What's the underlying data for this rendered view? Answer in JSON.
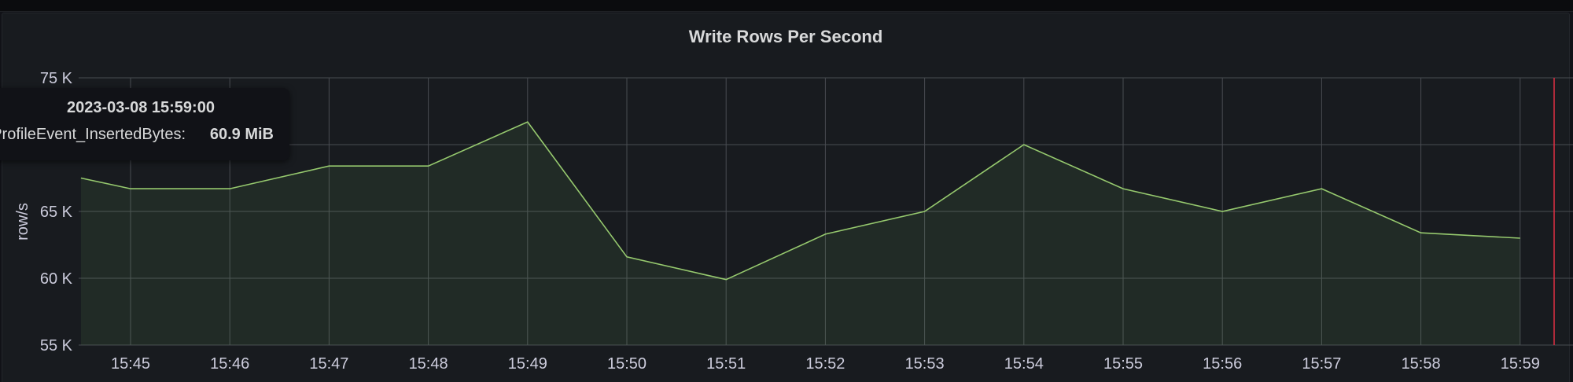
{
  "panel": {
    "title": "Write Rows Per Second"
  },
  "tooltip": {
    "time": "2023-03-08 15:59:00",
    "series_name": "ProfileEvent_InsertedBytes:",
    "value": "60.9 MiB"
  },
  "colors": {
    "line": "#96c96e",
    "fill": "rgba(115,191,105,0.10)",
    "grid": "#494c52",
    "cursor": "#e02f44"
  },
  "chart_data": {
    "type": "area",
    "title": "Write Rows Per Second",
    "ylabel": "row/s",
    "xlabel": "",
    "ylim": [
      55000,
      75000
    ],
    "y_ticks": [
      55000,
      60000,
      65000,
      70000,
      75000
    ],
    "y_tick_labels": [
      "55 K",
      "60 K",
      "65 K",
      "",
      "75 K"
    ],
    "x": [
      "15:44.5",
      "15:45",
      "15:46",
      "15:47",
      "15:48",
      "15:49",
      "15:50",
      "15:51",
      "15:52",
      "15:53",
      "15:54",
      "15:55",
      "15:56",
      "15:57",
      "15:58",
      "15:59"
    ],
    "x_tick_labels": [
      "15:45",
      "15:46",
      "15:47",
      "15:48",
      "15:49",
      "15:50",
      "15:51",
      "15:52",
      "15:53",
      "15:54",
      "15:55",
      "15:56",
      "15:57",
      "15:58",
      "15:59"
    ],
    "x_minutes": [
      44.5,
      45,
      46,
      47,
      48,
      49,
      50,
      51,
      52,
      53,
      54,
      55,
      56,
      57,
      58,
      59
    ],
    "values": [
      67500,
      66700,
      66700,
      68400,
      68400,
      71700,
      61600,
      59900,
      63300,
      65000,
      70000,
      66700,
      65000,
      66700,
      63400,
      63000
    ],
    "grid": true,
    "legend": "none"
  }
}
